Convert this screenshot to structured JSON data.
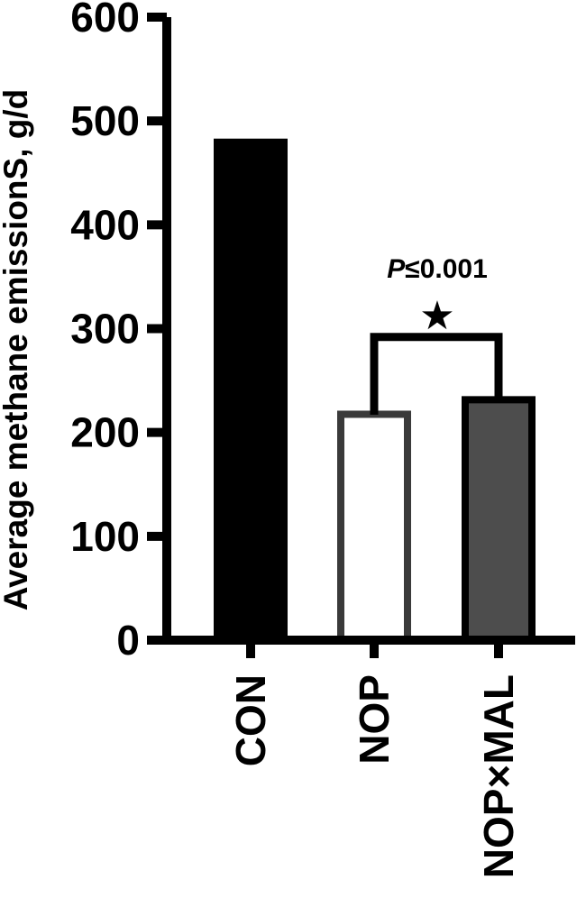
{
  "chart_data": {
    "type": "bar",
    "categories": [
      "CON",
      "NOP",
      "NOP×MAL"
    ],
    "values": [
      483,
      221,
      235
    ],
    "ylabel": "Average methane emissionS, g/d",
    "xlabel": "",
    "ylim": [
      0,
      600
    ],
    "yticks": [
      0,
      100,
      200,
      300,
      400,
      500,
      600
    ],
    "ytick_labels": [
      "0",
      "100",
      "200",
      "300",
      "400",
      "500",
      "600"
    ],
    "grid": false,
    "legend": "none",
    "bar_styles": [
      {
        "fill": "#000000",
        "stroke": "#000000"
      },
      {
        "fill": "#ffffff",
        "stroke": "#3a3a3a"
      },
      {
        "fill": "#4d4d4d",
        "stroke": "#000000"
      }
    ],
    "annotation": {
      "type": "significance-bracket",
      "between": [
        "NOP",
        "NOP×MAL"
      ],
      "bracket_value": 292,
      "p_prefix": "P",
      "p_rest": "≤0.001",
      "symbol": "★"
    }
  }
}
